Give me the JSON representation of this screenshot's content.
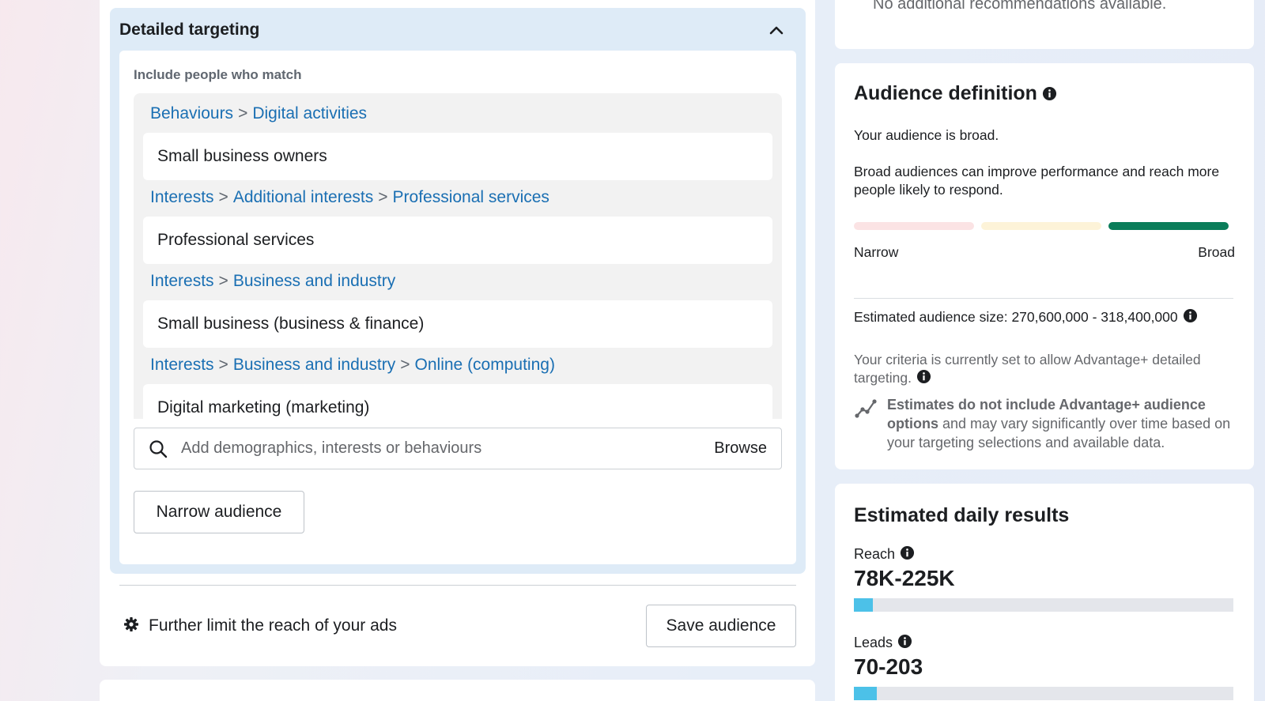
{
  "detailed_targeting": {
    "title": "Detailed targeting",
    "include_label": "Include people who match",
    "criteria": [
      {
        "path": [
          "Behaviours",
          "Digital activities"
        ],
        "item": "Small business owners"
      },
      {
        "path": [
          "Interests",
          "Additional interests",
          "Professional services"
        ],
        "item": "Professional services"
      },
      {
        "path": [
          "Interests",
          "Business and industry"
        ],
        "item": "Small business (business & finance)"
      },
      {
        "path": [
          "Interests",
          "Business and industry",
          "Online (computing)"
        ],
        "item": "Digital marketing (marketing)"
      }
    ],
    "search_placeholder": "Add demographics, interests or behaviours",
    "browse_label": "Browse",
    "narrow_button": "Narrow audience"
  },
  "footer": {
    "limit_text": "Further limit the reach of your ads",
    "save_button": "Save audience"
  },
  "recommendations": {
    "text": "No additional recommendations available."
  },
  "audience_definition": {
    "title": "Audience definition",
    "status": "Your audience is broad.",
    "description": "Broad audiences can improve performance and reach more people likely to respond.",
    "narrow_label": "Narrow",
    "broad_label": "Broad",
    "level": "broad",
    "bar_colors": [
      "#fbe3e4",
      "#fdf3d8",
      "#0a7d5a"
    ],
    "size_label": "Estimated audience size:",
    "size_value": "270,600,000 - 318,400,000",
    "criteria_note": "Your criteria is currently set to allow Advantage+ detailed targeting.",
    "estimate_bold": "Estimates do not include Advantage+ audience options",
    "estimate_rest": " and may vary significantly over time based on your targeting selections and available data."
  },
  "daily_results": {
    "title": "Estimated daily results",
    "reach_label": "Reach",
    "reach_value": "78K-225K",
    "reach_fill": 0.05,
    "leads_label": "Leads",
    "leads_value": "70-203",
    "leads_fill": 0.06
  }
}
